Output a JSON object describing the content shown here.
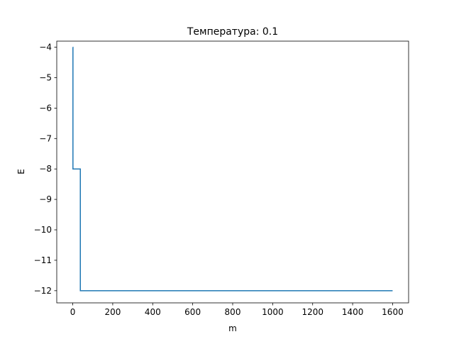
{
  "chart_data": {
    "type": "line",
    "title": "Температура: 0.1",
    "xlabel": "m",
    "ylabel": "E",
    "xlim": [
      -80,
      1680
    ],
    "ylim": [
      -12.4,
      -3.8
    ],
    "xticks": [
      0,
      200,
      400,
      600,
      800,
      1000,
      1200,
      1400,
      1600
    ],
    "xtick_labels": [
      "0",
      "200",
      "400",
      "600",
      "800",
      "1000",
      "1200",
      "1400",
      "1600"
    ],
    "yticks": [
      -4,
      -5,
      -6,
      -7,
      -8,
      -9,
      -10,
      -11,
      -12
    ],
    "ytick_labels": [
      "−4",
      "−5",
      "−6",
      "−7",
      "−8",
      "−9",
      "−10",
      "−11",
      "−12"
    ],
    "grid": false,
    "series": [
      {
        "color": "#1f77b4",
        "x": [
          0,
          1,
          1,
          35,
          35,
          38,
          38,
          1600
        ],
        "y": [
          -4,
          -4,
          -8,
          -8,
          -8,
          -8,
          -12,
          -12
        ]
      }
    ]
  }
}
